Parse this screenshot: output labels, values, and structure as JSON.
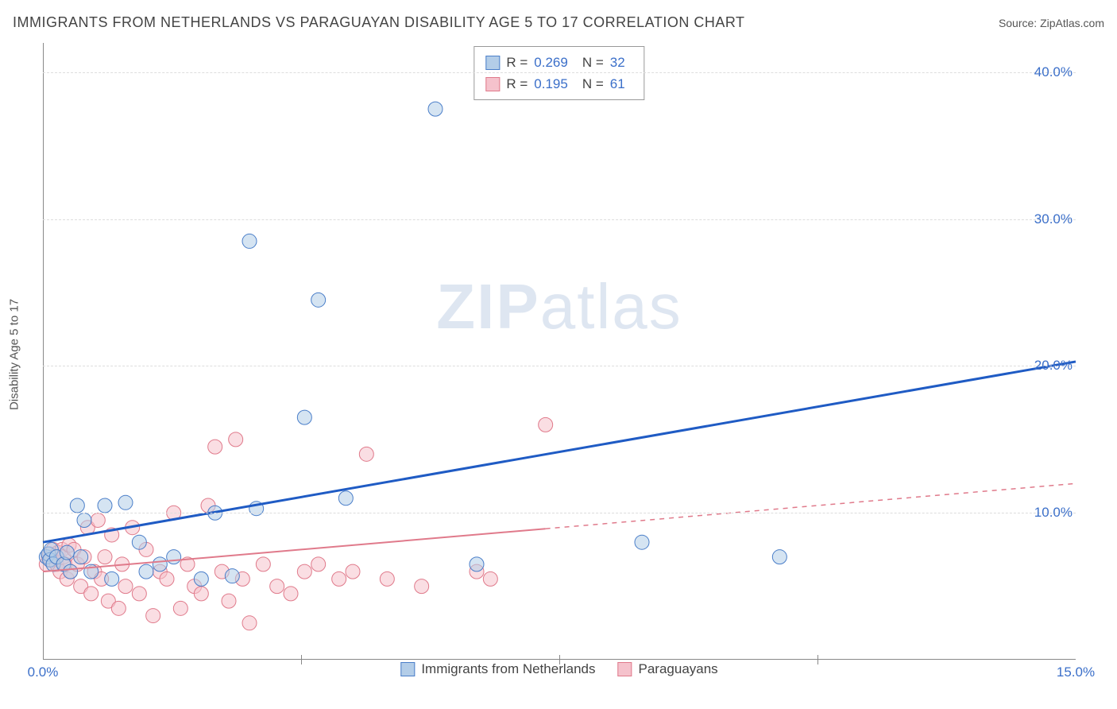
{
  "title": "IMMIGRANTS FROM NETHERLANDS VS PARAGUAYAN DISABILITY AGE 5 TO 17 CORRELATION CHART",
  "source_label": "Source: ",
  "source_value": "ZipAtlas.com",
  "y_axis_label": "Disability Age 5 to 17",
  "watermark_a": "ZIP",
  "watermark_b": "atlas",
  "chart": {
    "type": "scatter",
    "xlim": [
      0,
      15
    ],
    "ylim": [
      0,
      42
    ],
    "x_ticks": [
      0.0,
      15.0
    ],
    "x_tick_labels": [
      "0.0%",
      "15.0%"
    ],
    "x_minor_ticks": [
      3.75,
      7.5,
      11.25
    ],
    "y_ticks": [
      10.0,
      20.0,
      30.0,
      40.0
    ],
    "y_tick_labels": [
      "10.0%",
      "20.0%",
      "30.0%",
      "40.0%"
    ],
    "background_color": "#ffffff",
    "grid_color": "#dddddd",
    "axis_color": "#888888",
    "tick_label_color": "#3b6fc9",
    "marker_radius": 9,
    "marker_opacity": 0.55,
    "series": [
      {
        "name": "Immigrants from Netherlands",
        "color_fill": "#b3cde8",
        "color_stroke": "#4a7ec9",
        "trend_color": "#1f5bc4",
        "trend_width": 3,
        "trend": {
          "x1": 0,
          "y1": 8.0,
          "x2": 15,
          "y2": 20.3,
          "dashed_from_x": null
        },
        "R": 0.269,
        "N": 32,
        "points": [
          [
            0.05,
            7.0
          ],
          [
            0.08,
            7.2
          ],
          [
            0.1,
            6.8
          ],
          [
            0.12,
            7.5
          ],
          [
            0.15,
            6.5
          ],
          [
            0.2,
            7.0
          ],
          [
            0.3,
            6.5
          ],
          [
            0.35,
            7.3
          ],
          [
            0.4,
            6.0
          ],
          [
            0.5,
            10.5
          ],
          [
            0.55,
            7.0
          ],
          [
            0.6,
            9.5
          ],
          [
            0.7,
            6.0
          ],
          [
            0.9,
            10.5
          ],
          [
            1.0,
            5.5
          ],
          [
            1.2,
            10.7
          ],
          [
            1.4,
            8.0
          ],
          [
            1.5,
            6.0
          ],
          [
            1.7,
            6.5
          ],
          [
            1.9,
            7.0
          ],
          [
            2.3,
            5.5
          ],
          [
            2.5,
            10.0
          ],
          [
            3.0,
            28.5
          ],
          [
            2.75,
            5.7
          ],
          [
            3.1,
            10.3
          ],
          [
            3.8,
            16.5
          ],
          [
            4.0,
            24.5
          ],
          [
            4.4,
            11.0
          ],
          [
            5.7,
            37.5
          ],
          [
            6.3,
            6.5
          ],
          [
            8.7,
            8.0
          ],
          [
            10.7,
            7.0
          ]
        ]
      },
      {
        "name": "Paraguayans",
        "color_fill": "#f5c2cc",
        "color_stroke": "#e07a8b",
        "trend_color": "#e07a8b",
        "trend_width": 2,
        "trend": {
          "x1": 0,
          "y1": 6.0,
          "x2": 15,
          "y2": 12.0,
          "dashed_from_x": 7.3
        },
        "R": 0.195,
        "N": 61,
        "points": [
          [
            0.05,
            6.5
          ],
          [
            0.08,
            7.0
          ],
          [
            0.1,
            7.2
          ],
          [
            0.12,
            6.8
          ],
          [
            0.15,
            7.5
          ],
          [
            0.18,
            7.0
          ],
          [
            0.2,
            6.5
          ],
          [
            0.22,
            7.3
          ],
          [
            0.25,
            6.0
          ],
          [
            0.28,
            7.5
          ],
          [
            0.3,
            7.0
          ],
          [
            0.32,
            6.5
          ],
          [
            0.35,
            5.5
          ],
          [
            0.38,
            7.8
          ],
          [
            0.4,
            6.0
          ],
          [
            0.45,
            7.5
          ],
          [
            0.5,
            6.5
          ],
          [
            0.55,
            5.0
          ],
          [
            0.6,
            7.0
          ],
          [
            0.65,
            9.0
          ],
          [
            0.7,
            4.5
          ],
          [
            0.75,
            6.0
          ],
          [
            0.8,
            9.5
          ],
          [
            0.85,
            5.5
          ],
          [
            0.9,
            7.0
          ],
          [
            0.95,
            4.0
          ],
          [
            1.0,
            8.5
          ],
          [
            1.1,
            3.5
          ],
          [
            1.15,
            6.5
          ],
          [
            1.2,
            5.0
          ],
          [
            1.3,
            9.0
          ],
          [
            1.4,
            4.5
          ],
          [
            1.5,
            7.5
          ],
          [
            1.6,
            3.0
          ],
          [
            1.7,
            6.0
          ],
          [
            1.8,
            5.5
          ],
          [
            1.9,
            10.0
          ],
          [
            2.0,
            3.5
          ],
          [
            2.1,
            6.5
          ],
          [
            2.2,
            5.0
          ],
          [
            2.3,
            4.5
          ],
          [
            2.4,
            10.5
          ],
          [
            2.5,
            14.5
          ],
          [
            2.6,
            6.0
          ],
          [
            2.7,
            4.0
          ],
          [
            2.8,
            15.0
          ],
          [
            2.9,
            5.5
          ],
          [
            3.0,
            2.5
          ],
          [
            3.2,
            6.5
          ],
          [
            3.4,
            5.0
          ],
          [
            3.6,
            4.5
          ],
          [
            3.8,
            6.0
          ],
          [
            4.0,
            6.5
          ],
          [
            4.3,
            5.5
          ],
          [
            4.5,
            6.0
          ],
          [
            4.7,
            14.0
          ],
          [
            5.0,
            5.5
          ],
          [
            5.5,
            5.0
          ],
          [
            6.3,
            6.0
          ],
          [
            6.5,
            5.5
          ],
          [
            7.3,
            16.0
          ]
        ]
      }
    ]
  },
  "top_legend": {
    "r_label": "R =",
    "n_label": "N ="
  },
  "bottom_legend": {
    "items": [
      "Immigrants from Netherlands",
      "Paraguayans"
    ]
  }
}
